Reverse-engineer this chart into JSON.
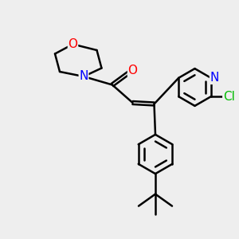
{
  "background_color": "#eeeeee",
  "line_color": "#000000",
  "bond_width": 1.8,
  "figsize": [
    3.0,
    3.0
  ],
  "dpi": 100,
  "atom_colors": {
    "O": "#ff0000",
    "N": "#0000ff",
    "Cl": "#00bb00",
    "C": "#000000"
  },
  "font_size": 11,
  "xlim": [
    0,
    10
  ],
  "ylim": [
    0,
    10
  ]
}
